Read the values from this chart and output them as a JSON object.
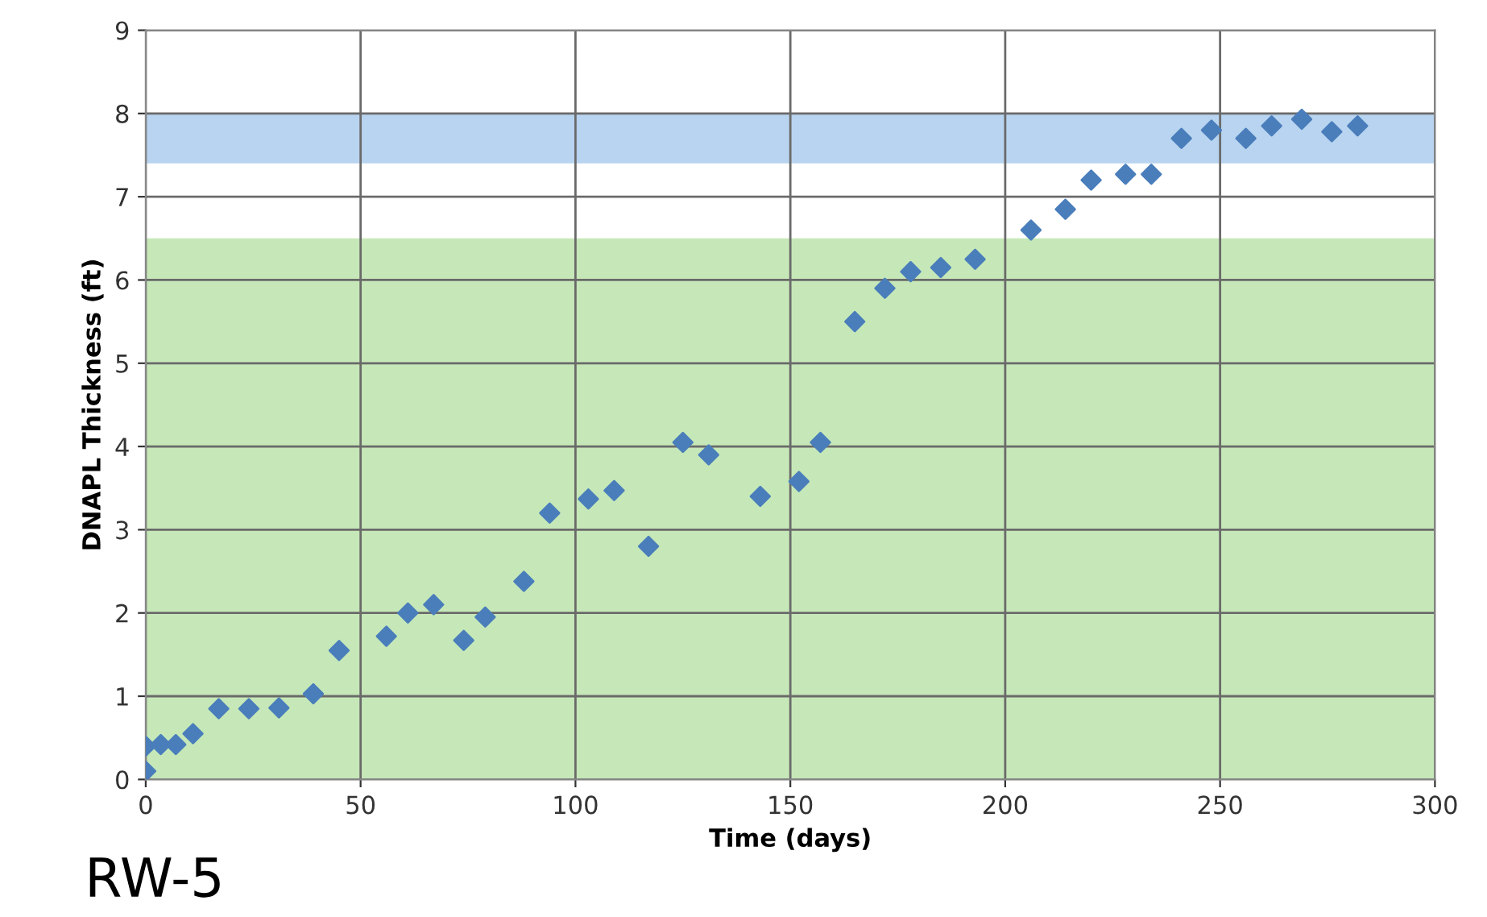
{
  "chart_data": {
    "type": "scatter",
    "xlabel": "Time (days)",
    "ylabel": "DNAPL Thickness (ft)",
    "x": [
      0,
      0,
      3.5,
      7,
      11,
      17,
      24,
      31,
      39,
      45,
      56,
      61,
      67,
      74,
      79,
      88,
      94,
      103,
      109,
      117,
      125,
      131,
      143,
      152,
      157,
      165,
      172,
      178,
      185,
      193,
      206,
      214,
      220,
      228,
      234,
      241,
      248,
      256,
      262,
      269,
      276,
      282
    ],
    "series": [
      {
        "color": "#4a7ebb",
        "values": [
          0.1,
          0.4,
          0.42,
          0.42,
          0.55,
          0.85,
          0.85,
          0.86,
          1.03,
          1.55,
          1.72,
          2.0,
          2.1,
          1.67,
          1.95,
          2.38,
          3.2,
          3.37,
          3.47,
          2.8,
          4.05,
          3.9,
          3.4,
          3.58,
          4.05,
          5.5,
          5.9,
          6.1,
          6.15,
          6.25,
          6.6,
          6.85,
          7.2,
          7.27,
          7.27,
          7.7,
          7.8,
          7.7,
          7.85,
          7.93,
          7.78,
          7.85
        ]
      }
    ],
    "xlim": [
      0,
      300
    ],
    "ylim": [
      0,
      9
    ],
    "xticks": [
      0,
      50,
      100,
      150,
      200,
      250,
      300
    ],
    "yticks": [
      0,
      1,
      2,
      3,
      4,
      5,
      6,
      7,
      8,
      9
    ],
    "bands": [
      {
        "axis": "y",
        "from": 0,
        "to": 6.5,
        "color": "#c6e8b8"
      },
      {
        "axis": "y",
        "from": 7.4,
        "to": 8.0,
        "color": "#b8d4f0"
      }
    ],
    "grid": true,
    "marker": "diamond",
    "legend": false,
    "annotations": [
      "RW-5"
    ]
  }
}
